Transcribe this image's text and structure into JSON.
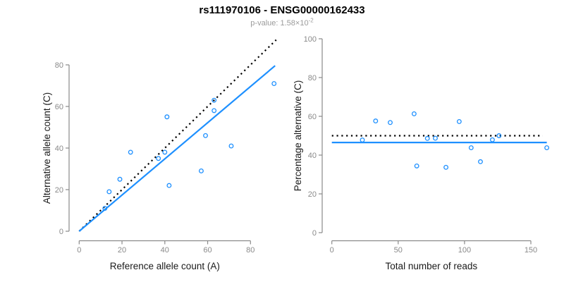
{
  "title": "rs111970106 - ENSG00000162433",
  "subtitle": {
    "text": "p-value: 1.58×10",
    "exponent": "-2"
  },
  "colors": {
    "blue": "#1E90FF",
    "black": "#000000",
    "axis_gray": "#8a8a8a",
    "tick_label_gray": "#8a8a8a",
    "label_black": "#1a1a1a",
    "subtitle_gray": "#9b9b9b"
  },
  "chart_data": [
    {
      "type": "scatter",
      "panel": "allele-counts",
      "xlabel": "Reference allele count (A)",
      "ylabel": "Alternative allele count (C)",
      "x_ticks": [
        0,
        20,
        40,
        60,
        80
      ],
      "y_ticks": [
        0,
        20,
        40,
        60,
        80
      ],
      "xlim": [
        0,
        93
      ],
      "ylim": [
        0,
        95
      ],
      "grid": false,
      "legend": "none",
      "points": [
        [
          12,
          11
        ],
        [
          14,
          19
        ],
        [
          19,
          25
        ],
        [
          24,
          38
        ],
        [
          37,
          35
        ],
        [
          40,
          38
        ],
        [
          41,
          55
        ],
        [
          42,
          22
        ],
        [
          57,
          29
        ],
        [
          59,
          46
        ],
        [
          63,
          58
        ],
        [
          63,
          63
        ],
        [
          71,
          41
        ],
        [
          91,
          71
        ]
      ],
      "lines": [
        {
          "name": "identity-line",
          "style": "dotted",
          "color": "black",
          "x1": 0,
          "y1": 0,
          "x2": 92,
          "y2": 92
        },
        {
          "name": "fit-line",
          "style": "solid",
          "color": "blue",
          "x1": 0,
          "y1": 0,
          "x2": 91.5,
          "y2": 79.6
        }
      ]
    },
    {
      "type": "scatter",
      "panel": "percentage-vs-coverage",
      "xlabel": "Total number of reads",
      "ylabel": "Percentage alternative (C)",
      "x_ticks": [
        0,
        50,
        100,
        150
      ],
      "y_ticks": [
        0,
        20,
        40,
        60,
        80,
        100
      ],
      "xlim": [
        0,
        168
      ],
      "ylim": [
        0,
        100
      ],
      "grid": false,
      "legend": "none",
      "points": [
        [
          23,
          47.8
        ],
        [
          33,
          57.6
        ],
        [
          44,
          56.8
        ],
        [
          62,
          61.3
        ],
        [
          64,
          34.4
        ],
        [
          72,
          48.6
        ],
        [
          78,
          48.7
        ],
        [
          86,
          33.7
        ],
        [
          96,
          57.3
        ],
        [
          105,
          43.8
        ],
        [
          112,
          36.6
        ],
        [
          121,
          47.9
        ],
        [
          126,
          50
        ],
        [
          162,
          43.8
        ]
      ],
      "lines": [
        {
          "name": "null-50pct-line",
          "style": "dotted",
          "color": "black",
          "x1": 0,
          "y1": 50,
          "x2": 159,
          "y2": 50
        },
        {
          "name": "mean-pct-line",
          "style": "solid",
          "color": "blue",
          "x1": 0,
          "y1": 46.5,
          "x2": 162,
          "y2": 46.5
        }
      ]
    }
  ]
}
